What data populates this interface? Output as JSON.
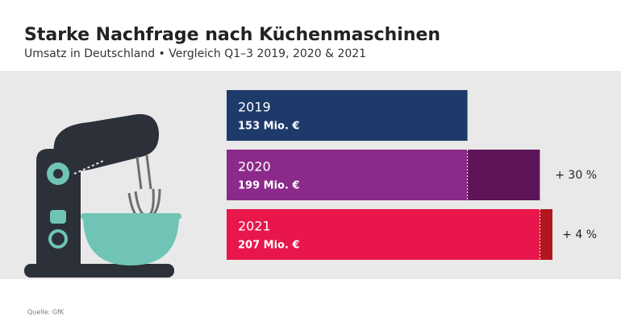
{
  "chart_data": {
    "type": "bar",
    "orientation": "horizontal",
    "title": "Starke Nachfrage nach Küchenmaschinen",
    "subtitle": "Umsatz in Deutschland • Vergleich Q1–3 2019, 2020 & 2021",
    "categories": [
      "2019",
      "2020",
      "2021"
    ],
    "values": [
      153,
      199,
      207
    ],
    "value_labels": [
      "153 Mio. €",
      "199 Mio. €",
      "207 Mio. €"
    ],
    "colors": [
      "#1e3a6b",
      "#8b2a8a",
      "#e8164b"
    ],
    "growth_colors": [
      null,
      "#5e1558",
      "#b3161f"
    ],
    "growth_labels": [
      null,
      "+ 30 %",
      "+ 4 %"
    ],
    "xlim": [
      0,
      207
    ],
    "source": "Quelle: GfK"
  }
}
